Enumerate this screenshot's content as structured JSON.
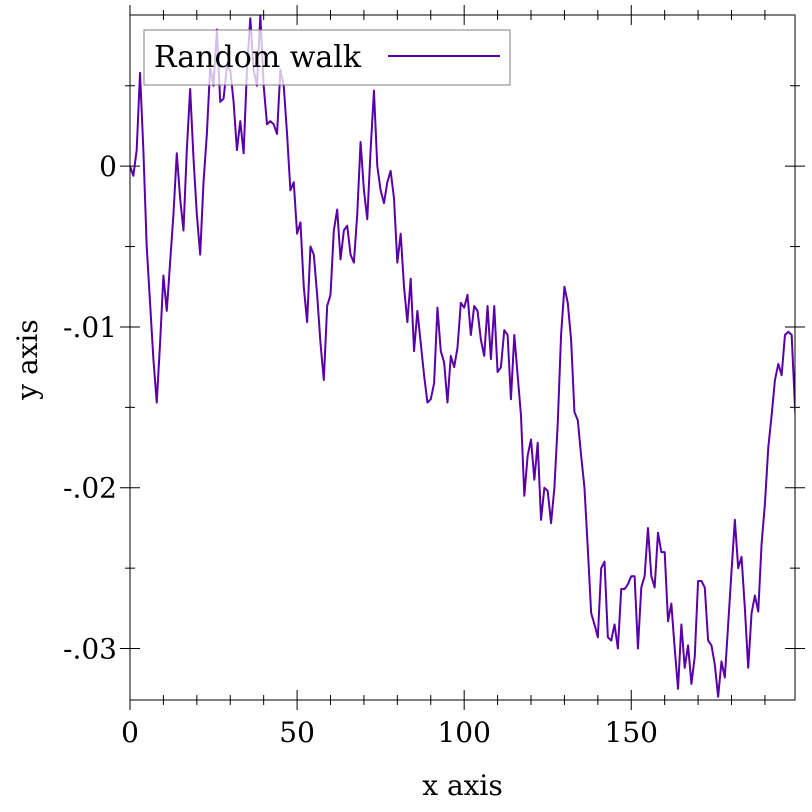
{
  "chart_data": {
    "type": "line",
    "title": "",
    "xlabel": "x axis",
    "ylabel": "y axis",
    "xlim": [
      0,
      199
    ],
    "ylim": [
      -0.0332,
      0.0094
    ],
    "grid": false,
    "legend_position": "top-left",
    "x_major_ticks": [
      0,
      50,
      100,
      150
    ],
    "x_tick_labels": [
      "0",
      "50",
      "100",
      "150"
    ],
    "y_major_ticks": [
      0,
      -0.01,
      -0.02,
      -0.03
    ],
    "y_tick_labels": [
      "0",
      "-.01",
      "-.02",
      "-.03"
    ],
    "series": [
      {
        "name": "Random walk",
        "color": "#5a00a8",
        "x_start": 0,
        "x_step": 1,
        "values": [
          0,
          -0.0006,
          0.001,
          0.0058,
          0.001,
          -0.005,
          -0.0085,
          -0.012,
          -0.0147,
          -0.011,
          -0.0068,
          -0.009,
          -0.006,
          -0.003,
          0.0008,
          -0.002,
          -0.004,
          0.001,
          0.0048,
          0.0005,
          -0.003,
          -0.0055,
          -0.001,
          0.002,
          0.0062,
          0.005,
          0.0085,
          0.004,
          0.0042,
          0.0062,
          0.006,
          0.004,
          0.001,
          0.0028,
          0.0008,
          0.006,
          0.0092,
          0.006,
          0.005,
          0.0094,
          0.005,
          0.0026,
          0.0028,
          0.0026,
          0.002,
          0.006,
          0.005,
          0.002,
          -0.0015,
          -0.001,
          -0.0042,
          -0.0035,
          -0.0075,
          -0.0097,
          -0.005,
          -0.0055,
          -0.008,
          -0.011,
          -0.0133,
          -0.0087,
          -0.008,
          -0.004,
          -0.0027,
          -0.0058,
          -0.004,
          -0.0037,
          -0.0055,
          -0.006,
          -0.003,
          0.0015,
          -0.0015,
          -0.0033,
          0.001,
          0.0047,
          0.0,
          -0.0015,
          -0.0023,
          -0.001,
          -0.0003,
          -0.002,
          -0.006,
          -0.0042,
          -0.0075,
          -0.0097,
          -0.007,
          -0.0115,
          -0.009,
          -0.011,
          -0.013,
          -0.0147,
          -0.0145,
          -0.0135,
          -0.0088,
          -0.0115,
          -0.0122,
          -0.0147,
          -0.0118,
          -0.0125,
          -0.0113,
          -0.0085,
          -0.0088,
          -0.008,
          -0.0105,
          -0.0087,
          -0.009,
          -0.0108,
          -0.0118,
          -0.0087,
          -0.012,
          -0.0087,
          -0.0128,
          -0.0125,
          -0.0102,
          -0.0105,
          -0.0145,
          -0.0105,
          -0.013,
          -0.0155,
          -0.0205,
          -0.018,
          -0.017,
          -0.0195,
          -0.0172,
          -0.022,
          -0.02,
          -0.0202,
          -0.0222,
          -0.02,
          -0.016,
          -0.0105,
          -0.0075,
          -0.0085,
          -0.0108,
          -0.0153,
          -0.0158,
          -0.018,
          -0.02,
          -0.0238,
          -0.0278,
          -0.0285,
          -0.0293,
          -0.025,
          -0.0246,
          -0.0293,
          -0.0295,
          -0.0285,
          -0.03,
          -0.0263,
          -0.0263,
          -0.026,
          -0.0255,
          -0.0255,
          -0.03,
          -0.0262,
          -0.0255,
          -0.0225,
          -0.0255,
          -0.0262,
          -0.0228,
          -0.024,
          -0.024,
          -0.0283,
          -0.0272,
          -0.03,
          -0.0325,
          -0.0285,
          -0.0312,
          -0.0298,
          -0.0322,
          -0.0305,
          -0.0258,
          -0.0258,
          -0.0262,
          -0.0295,
          -0.0298,
          -0.031,
          -0.033,
          -0.0308,
          -0.0318,
          -0.0285,
          -0.0252,
          -0.022,
          -0.025,
          -0.0243,
          -0.0275,
          -0.0312,
          -0.0278,
          -0.0267,
          -0.0277,
          -0.0235,
          -0.021,
          -0.0175,
          -0.0155,
          -0.0133,
          -0.0123,
          -0.013,
          -0.0105,
          -0.0103,
          -0.0105,
          -0.015,
          -0.0182
        ]
      }
    ]
  }
}
